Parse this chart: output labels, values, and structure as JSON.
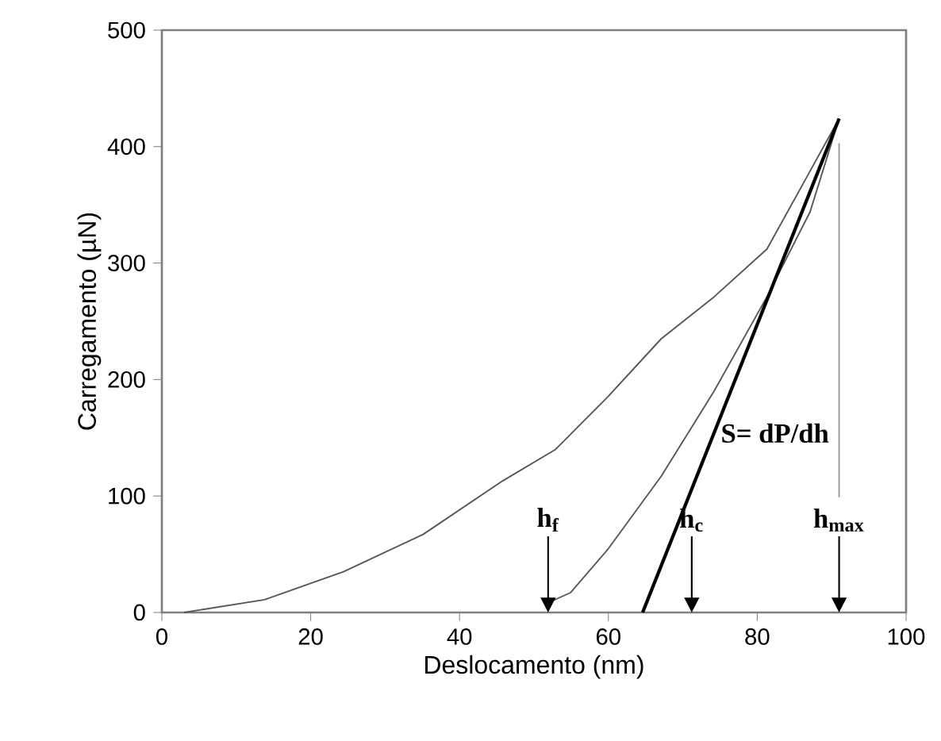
{
  "chart_data": {
    "type": "line",
    "xlabel": "Deslocamento  (nm)",
    "ylabel": "Carregamento (µN)",
    "xlim": [
      0,
      100
    ],
    "ylim": [
      0,
      500
    ],
    "xticks": [
      0,
      20,
      40,
      60,
      80,
      100
    ],
    "yticks": [
      0,
      100,
      200,
      300,
      400,
      500
    ],
    "series": [
      {
        "color": "#555555",
        "x": [
          3,
          13.8,
          24.4,
          35.1,
          45.8,
          52.9,
          59.9,
          67.1,
          74.2,
          81.3,
          91
        ],
        "values": [
          0,
          11,
          35,
          67,
          113,
          140,
          185,
          235,
          271,
          312,
          424
        ]
      },
      {
        "color": "#555555",
        "x": [
          51.8,
          54.9,
          59.9,
          67.1,
          74.2,
          81.3,
          87.1,
          91
        ],
        "values": [
          8,
          17,
          54,
          117,
          190,
          271,
          344,
          424
        ]
      },
      {
        "color": "#000000",
        "x": [
          64.6,
          91
        ],
        "values": [
          0,
          424
        ]
      },
      {
        "color": "#999999",
        "x": [
          91,
          91
        ],
        "values": [
          403,
          99
        ]
      }
    ],
    "annotations": [
      {
        "text": "h$_{f}$",
        "x": 51.9,
        "y": 0
      },
      "h$_{c}$",
      "h$_{max}$",
      {
        "text": "S= dP/dh",
        "x": 74.2,
        "y": 154
      }
    ],
    "grid": false,
    "marker": "none",
    "line_style": "solid"
  }
}
